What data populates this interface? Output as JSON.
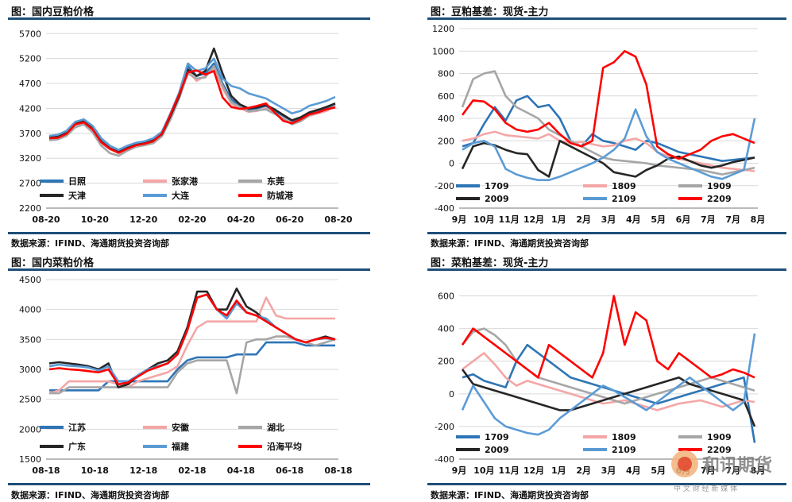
{
  "colors": {
    "title_rule": "#1f4e79",
    "grid": "#d9d9d9"
  },
  "panels": [
    {
      "title": "图：国内豆粕价格",
      "source": "数据来源：IFIND、海通期货投资咨询部",
      "chart_data": {
        "type": "line",
        "x_ticks": [
          "08-20",
          "10-20",
          "12-20",
          "02-20",
          "04-20",
          "06-20",
          "08-20"
        ],
        "y_ticks": [
          2200,
          2700,
          3200,
          3700,
          4200,
          4700,
          5200,
          5700
        ],
        "ylim": [
          2200,
          5800
        ],
        "legend": "bottom-left, 3 columns",
        "series": [
          {
            "name": "日照",
            "color": "#2e75b6",
            "values": [
              3600,
              3620,
              3700,
              3870,
              3930,
              3800,
              3550,
              3400,
              3330,
              3420,
              3480,
              3500,
              3560,
              3700,
              4100,
              4500,
              5050,
              4850,
              4900,
              5100,
              4700,
              4380,
              4250,
              4180,
              4200,
              4250,
              4150,
              4050,
              3950,
              4000,
              4100,
              4150,
              4200,
              4280
            ]
          },
          {
            "name": "张家港",
            "color": "#f4a6a6",
            "values": [
              3580,
              3600,
              3680,
              3850,
              3900,
              3750,
              3500,
              3380,
              3300,
              3380,
              3450,
              3480,
              3520,
              3650,
              4000,
              4420,
              4950,
              4750,
              4850,
              5000,
              4600,
              4300,
              4200,
              4130,
              4150,
              4200,
              4100,
              4000,
              3900,
              3950,
              4050,
              4100,
              4150,
              4250
            ]
          },
          {
            "name": "东莞",
            "color": "#a6a6a6",
            "values": [
              3560,
              3580,
              3650,
              3820,
              3880,
              3720,
              3450,
              3300,
              3250,
              3350,
              3430,
              3460,
              3500,
              3640,
              3980,
              4400,
              4900,
              4800,
              4820,
              5050,
              4650,
              4320,
              4230,
              4140,
              4160,
              4180,
              4090,
              3990,
              3880,
              3940,
              4060,
              4120,
              4180,
              4230
            ]
          },
          {
            "name": "天津",
            "color": "#262626",
            "values": [
              3620,
              3640,
              3720,
              3900,
              3950,
              3800,
              3530,
              3400,
              3320,
              3400,
              3470,
              3500,
              3560,
              3680,
              4050,
              4450,
              4980,
              4850,
              4950,
              5400,
              4900,
              4450,
              4280,
              4200,
              4220,
              4270,
              4180,
              4070,
              3960,
              4020,
              4120,
              4170,
              4230,
              4300
            ]
          },
          {
            "name": "大连",
            "color": "#5b9bd5",
            "values": [
              3650,
              3670,
              3750,
              3930,
              3980,
              3850,
              3600,
              3450,
              3370,
              3450,
              3510,
              3540,
              3600,
              3730,
              4100,
              4520,
              5100,
              4950,
              5000,
              5200,
              4800,
              4650,
              4600,
              4500,
              4450,
              4400,
              4300,
              4200,
              4100,
              4150,
              4250,
              4300,
              4350,
              4430
            ]
          },
          {
            "name": "防城港",
            "color": "#ff0000",
            "values": [
              3600,
              3610,
              3690,
              3880,
              3920,
              3780,
              3520,
              3390,
              3310,
              3390,
              3460,
              3490,
              3540,
              3690,
              4080,
              4480,
              4920,
              4960,
              4880,
              4950,
              4420,
              4230,
              4190,
              4210,
              4250,
              4300,
              4120,
              3950,
              3900,
              3980,
              4080,
              4120,
              4180,
              4220
            ]
          }
        ]
      }
    },
    {
      "title": "图：豆粕基差：现货-主力",
      "source": "数据来源：IFIND、海通期货投资咨询部",
      "chart_data": {
        "type": "line",
        "x_ticks": [
          "9月",
          "10月",
          "11月",
          "12月",
          "1月",
          "2月",
          "3月",
          "4月",
          "5月",
          "6月",
          "7月",
          "7月",
          "8月"
        ],
        "y_ticks": [
          -400,
          -200,
          0,
          200,
          400,
          600,
          800,
          1000,
          1200
        ],
        "ylim": [
          -400,
          1200
        ],
        "legend": "bottom, 3 columns",
        "series": [
          {
            "name": "1709",
            "color": "#2e75b6",
            "values": [
              150,
              180,
              350,
              500,
              380,
              560,
              600,
              500,
              520,
              400,
              200,
              150,
              260,
              200,
              180,
              150,
              120,
              200,
              180,
              140,
              100,
              80,
              60,
              40,
              20,
              30,
              40,
              50
            ]
          },
          {
            "name": "1809",
            "color": "#f4a6a6",
            "values": [
              200,
              220,
              260,
              280,
              250,
              240,
              230,
              220,
              260,
              200,
              180,
              190,
              170,
              150,
              160,
              200,
              220,
              180,
              100,
              60,
              40,
              20,
              0,
              -20,
              -40,
              -50,
              -60,
              -70
            ]
          },
          {
            "name": "1909",
            "color": "#a6a6a6",
            "values": [
              500,
              750,
              800,
              820,
              600,
              500,
              450,
              400,
              300,
              250,
              200,
              150,
              100,
              50,
              30,
              20,
              10,
              0,
              -20,
              -30,
              -40,
              -50,
              -60,
              -80,
              -100,
              -80,
              -60,
              -40
            ]
          },
          {
            "name": "2009",
            "color": "#262626",
            "values": [
              -50,
              150,
              180,
              160,
              120,
              90,
              80,
              -60,
              -120,
              200,
              150,
              100,
              50,
              0,
              -80,
              -100,
              -120,
              -60,
              -20,
              40,
              60,
              20,
              -20,
              -40,
              -20,
              10,
              30,
              50
            ]
          },
          {
            "name": "2109",
            "color": "#5b9bd5",
            "values": [
              120,
              180,
              200,
              150,
              -50,
              -100,
              -130,
              -150,
              -150,
              -120,
              -80,
              -40,
              0,
              50,
              120,
              220,
              480,
              240,
              100,
              40,
              0,
              -40,
              -80,
              -120,
              -140,
              -100,
              -60,
              400
            ]
          },
          {
            "name": "2209",
            "color": "#ff0000",
            "values": [
              430,
              560,
              550,
              480,
              360,
              300,
              280,
              300,
              360,
              260,
              180,
              150,
              200,
              850,
              900,
              1000,
              950,
              700,
              150,
              80,
              40,
              80,
              120,
              200,
              240,
              260,
              220,
              180
            ]
          }
        ]
      }
    },
    {
      "title": "图：国内菜粕价格",
      "source": "数据来源：IFIND、海通期货投资咨询部",
      "chart_data": {
        "type": "line",
        "x_ticks": [
          "08-18",
          "10-18",
          "12-18",
          "02-18",
          "04-18",
          "06-18",
          "08-18"
        ],
        "y_ticks": [
          1500,
          2000,
          2500,
          3000,
          3500,
          4000,
          4500
        ],
        "ylim": [
          1500,
          4500
        ],
        "legend": "bottom-left, 3 columns",
        "series": [
          {
            "name": "江苏",
            "color": "#2e75b6",
            "values": [
              2650,
              2650,
              2650,
              2650,
              2650,
              2650,
              2800,
              2800,
              2800,
              2800,
              2800,
              2800,
              2800,
              3000,
              3150,
              3200,
              3200,
              3200,
              3200,
              3250,
              3250,
              3250,
              3450,
              3450,
              3450,
              3450,
              3400,
              3400,
              3400,
              3400
            ]
          },
          {
            "name": "安徽",
            "color": "#f4a6a6",
            "values": [
              2600,
              2650,
              2800,
              2800,
              2800,
              2800,
              2800,
              2750,
              2700,
              2800,
              2850,
              2900,
              2950,
              3050,
              3400,
              3700,
              3800,
              3800,
              3800,
              3800,
              3800,
              3800,
              4200,
              3900,
              3850,
              3850,
              3850,
              3850,
              3850,
              3850
            ]
          },
          {
            "name": "湖北",
            "color": "#a6a6a6",
            "values": [
              2600,
              2600,
              2700,
              2700,
              2700,
              2700,
              2700,
              2700,
              2700,
              2700,
              2700,
              2700,
              2700,
              2950,
              3100,
              3150,
              3150,
              3150,
              3150,
              2600,
              3450,
              3500,
              3500,
              3550,
              3550,
              3500,
              3450,
              3400,
              3450,
              3500
            ]
          },
          {
            "name": "广东",
            "color": "#262626",
            "values": [
              3100,
              3120,
              3100,
              3080,
              3050,
              3000,
              3100,
              2700,
              2750,
              2900,
              3000,
              3100,
              3150,
              3300,
              3700,
              4300,
              4300,
              4000,
              4000,
              4350,
              4050,
              3950,
              3800,
              3700,
              3600,
              3500,
              3450,
              3500,
              3550,
              3500
            ]
          },
          {
            "name": "福建",
            "color": "#5b9bd5",
            "values": [
              3050,
              3080,
              3060,
              3050,
              3030,
              2980,
              3050,
              2800,
              2800,
              2900,
              3000,
              3050,
              3100,
              3250,
              3650,
              4200,
              4250,
              4000,
              3850,
              4100,
              3950,
              3900,
              3850,
              3700,
              3600,
              3500,
              3450,
              3500,
              3520,
              3500
            ]
          },
          {
            "name": "沿海平均",
            "color": "#ff0000",
            "values": [
              3000,
              3020,
              3000,
              2990,
              2970,
              2950,
              3000,
              2750,
              2780,
              2880,
              2980,
              3040,
              3100,
              3250,
              3650,
              4200,
              4250,
              4000,
              3900,
              4150,
              3950,
              3900,
              3800,
              3700,
              3600,
              3500,
              3450,
              3500,
              3530,
              3500
            ]
          }
        ]
      }
    },
    {
      "title": "图：菜粕基差：现货-主力",
      "source": "数据来源：IFIND、海通期货投资咨询部",
      "chart_data": {
        "type": "line",
        "x_ticks": [
          "9月",
          "10月",
          "11月",
          "12月",
          "1月",
          "2月",
          "3月",
          "4月",
          "5月",
          "6月",
          "7月",
          "7月",
          "8月"
        ],
        "y_ticks": [
          -400,
          -200,
          0,
          200,
          400,
          600
        ],
        "ylim": [
          -400,
          700
        ],
        "legend": "bottom, 3 columns",
        "series": [
          {
            "name": "1709",
            "color": "#2e75b6",
            "values": [
              100,
              120,
              80,
              60,
              40,
              200,
              300,
              250,
              200,
              150,
              100,
              80,
              60,
              40,
              20,
              0,
              -20,
              -40,
              -60,
              -40,
              -20,
              0,
              20,
              40,
              60,
              80,
              100,
              -300
            ]
          },
          {
            "name": "1809",
            "color": "#f4a6a6",
            "values": [
              150,
              200,
              250,
              180,
              100,
              50,
              80,
              60,
              40,
              20,
              0,
              -20,
              -40,
              -60,
              -50,
              -40,
              -60,
              -80,
              -100,
              -80,
              -60,
              -50,
              -40,
              -60,
              -80,
              -60,
              -40,
              -50
            ]
          },
          {
            "name": "1909",
            "color": "#a6a6a6",
            "values": [
              300,
              380,
              400,
              360,
              300,
              200,
              150,
              100,
              80,
              60,
              40,
              20,
              0,
              -20,
              -40,
              -60,
              -40,
              -20,
              0,
              20,
              40,
              60,
              80,
              100,
              80,
              60,
              40,
              20
            ]
          },
          {
            "name": "2009",
            "color": "#262626",
            "values": [
              150,
              60,
              40,
              20,
              0,
              -20,
              -40,
              -60,
              -80,
              -100,
              -100,
              -80,
              -60,
              -40,
              -20,
              0,
              20,
              40,
              60,
              80,
              100,
              60,
              40,
              20,
              0,
              -20,
              -40,
              -200
            ]
          },
          {
            "name": "2109",
            "color": "#5b9bd5",
            "values": [
              -100,
              50,
              -50,
              -150,
              -200,
              -220,
              -240,
              -250,
              -220,
              -150,
              -100,
              -50,
              0,
              50,
              20,
              -20,
              -60,
              -100,
              -50,
              0,
              50,
              100,
              50,
              0,
              -50,
              -100,
              -50,
              370
            ]
          },
          {
            "name": "2209",
            "color": "#ff0000",
            "values": [
              300,
              400,
              350,
              300,
              250,
              200,
              150,
              100,
              300,
              250,
              200,
              150,
              100,
              250,
              600,
              300,
              500,
              450,
              200,
              150,
              250,
              200,
              150,
              100,
              120,
              150,
              130,
              100
            ]
          }
        ]
      }
    }
  ],
  "watermark": {
    "name": "和讯期货",
    "subtitle": "中 文 财 经 新 媒 体"
  }
}
